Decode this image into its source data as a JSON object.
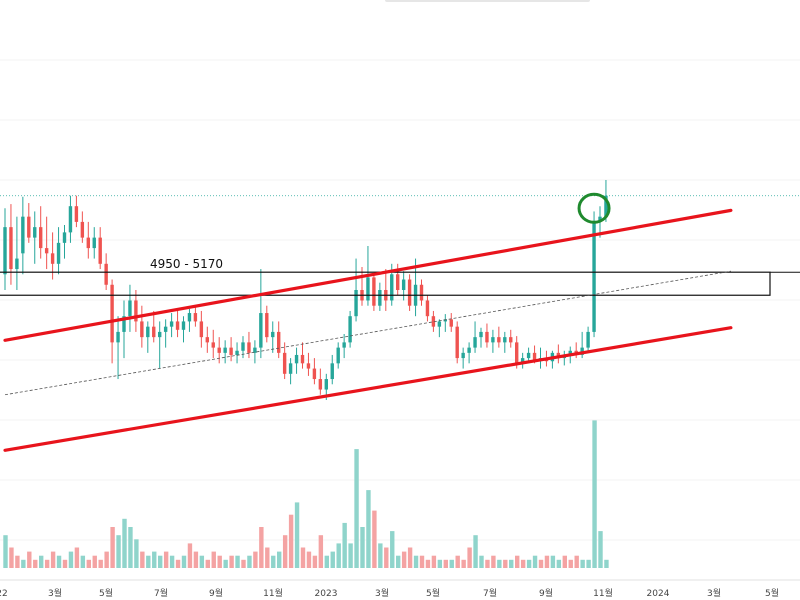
{
  "colors": {
    "up": "#26a69a",
    "down": "#ef5350",
    "up_volume": "#8fd4cb",
    "down_volume": "#f4a3a3",
    "channel": "#e8141c",
    "circle": "#1f8a2e",
    "zone_border": "#111111"
  },
  "chart_data": {
    "type": "candlestick",
    "title": "",
    "zone": {
      "label": "4950 - 5170",
      "low": 4950,
      "high": 5170
    },
    "x_ticks": [
      "22",
      "3월",
      "5월",
      "7월",
      "9월",
      "11월",
      "2023",
      "3월",
      "5월",
      "7월",
      "9월",
      "11월",
      "2024",
      "3월",
      "5월"
    ],
    "last_price_line": 5900,
    "ylim": [
      0,
      8000
    ],
    "channel_upper": {
      "start": [
        0,
        4520
      ],
      "end": [
        122,
        5760
      ]
    },
    "channel_lower": {
      "start": [
        0,
        3470
      ],
      "end": [
        122,
        4640
      ]
    },
    "channel_mid": {
      "start": [
        0,
        4000
      ],
      "end": [
        122,
        5180
      ]
    },
    "highlight_circle": {
      "x": 99,
      "y": 5780
    },
    "candles": [
      [
        5150,
        5780,
        5000,
        5600
      ],
      [
        5600,
        5820,
        5050,
        5200
      ],
      [
        5200,
        5700,
        5000,
        5300
      ],
      [
        5350,
        5890,
        5150,
        5700
      ],
      [
        5700,
        5830,
        5450,
        5500
      ],
      [
        5500,
        5750,
        5250,
        5600
      ],
      [
        5600,
        5800,
        5300,
        5400
      ],
      [
        5400,
        5700,
        5200,
        5350
      ],
      [
        5350,
        5550,
        5100,
        5250
      ],
      [
        5250,
        5600,
        5150,
        5450
      ],
      [
        5450,
        5620,
        5300,
        5550
      ],
      [
        5550,
        5900,
        5450,
        5800
      ],
      [
        5800,
        5900,
        5600,
        5650
      ],
      [
        5650,
        5750,
        5450,
        5500
      ],
      [
        5500,
        5650,
        5300,
        5400
      ],
      [
        5400,
        5600,
        5300,
        5500
      ],
      [
        5500,
        5600,
        5200,
        5250
      ],
      [
        5250,
        5350,
        5000,
        5050
      ],
      [
        5050,
        5100,
        4300,
        4500
      ],
      [
        4500,
        4750,
        4150,
        4600
      ],
      [
        4600,
        4900,
        4350,
        4750
      ],
      [
        4750,
        5050,
        4600,
        4900
      ],
      [
        4900,
        5000,
        4600,
        4700
      ],
      [
        4700,
        4850,
        4450,
        4550
      ],
      [
        4550,
        4700,
        4400,
        4650
      ],
      [
        4650,
        4800,
        4500,
        4550
      ],
      [
        4550,
        4700,
        4250,
        4600
      ],
      [
        4600,
        4720,
        4450,
        4650
      ],
      [
        4650,
        4780,
        4550,
        4700
      ],
      [
        4700,
        4800,
        4550,
        4620
      ],
      [
        4620,
        4750,
        4500,
        4700
      ],
      [
        4700,
        4820,
        4600,
        4780
      ],
      [
        4780,
        4850,
        4650,
        4700
      ],
      [
        4700,
        4800,
        4450,
        4550
      ],
      [
        4550,
        4650,
        4400,
        4500
      ],
      [
        4500,
        4620,
        4350,
        4450
      ],
      [
        4450,
        4550,
        4300,
        4400
      ],
      [
        4400,
        4520,
        4300,
        4450
      ],
      [
        4450,
        4550,
        4320,
        4380
      ],
      [
        4380,
        4500,
        4300,
        4420
      ],
      [
        4420,
        4560,
        4350,
        4500
      ],
      [
        4500,
        4600,
        4350,
        4400
      ],
      [
        4400,
        4520,
        4300,
        4450
      ],
      [
        4450,
        5200,
        4350,
        4780
      ],
      [
        4780,
        4850,
        4500,
        4550
      ],
      [
        4550,
        4700,
        4400,
        4600
      ],
      [
        4600,
        4700,
        4350,
        4400
      ],
      [
        4400,
        4500,
        4150,
        4200
      ],
      [
        4200,
        4350,
        4100,
        4300
      ],
      [
        4300,
        4450,
        4200,
        4380
      ],
      [
        4380,
        4500,
        4250,
        4300
      ],
      [
        4300,
        4400,
        4180,
        4250
      ],
      [
        4250,
        4350,
        4100,
        4150
      ],
      [
        4150,
        4250,
        4000,
        4050
      ],
      [
        4050,
        4200,
        3950,
        4150
      ],
      [
        4150,
        4380,
        4100,
        4300
      ],
      [
        4300,
        4500,
        4250,
        4450
      ],
      [
        4450,
        4580,
        4350,
        4500
      ],
      [
        4500,
        4800,
        4450,
        4750
      ],
      [
        4750,
        5300,
        4700,
        5000
      ],
      [
        5000,
        5220,
        4850,
        4900
      ],
      [
        4900,
        5420,
        4850,
        5120
      ],
      [
        5120,
        5150,
        4800,
        4850
      ],
      [
        4850,
        5070,
        4800,
        5000
      ],
      [
        5000,
        5200,
        4800,
        4900
      ],
      [
        4900,
        5250,
        4850,
        5150
      ],
      [
        5150,
        5250,
        4950,
        5000
      ],
      [
        5000,
        5180,
        4900,
        5100
      ],
      [
        5100,
        5150,
        4800,
        4850
      ],
      [
        4850,
        5300,
        4750,
        5050
      ],
      [
        5050,
        5100,
        4850,
        4900
      ],
      [
        4900,
        4950,
        4700,
        4750
      ],
      [
        4750,
        4800,
        4600,
        4650
      ],
      [
        4650,
        4720,
        4550,
        4700
      ],
      [
        4700,
        4770,
        4600,
        4720
      ],
      [
        4720,
        4780,
        4600,
        4650
      ],
      [
        4650,
        4700,
        4300,
        4350
      ],
      [
        4350,
        4450,
        4250,
        4400
      ],
      [
        4400,
        4500,
        4300,
        4450
      ],
      [
        4450,
        4700,
        4400,
        4550
      ],
      [
        4550,
        4640,
        4450,
        4600
      ],
      [
        4600,
        4680,
        4450,
        4500
      ],
      [
        4500,
        4620,
        4400,
        4550
      ],
      [
        4550,
        4650,
        4450,
        4500
      ],
      [
        4500,
        4600,
        4400,
        4550
      ],
      [
        4550,
        4620,
        4450,
        4500
      ],
      [
        4500,
        4560,
        4250,
        4300
      ],
      [
        4300,
        4400,
        4250,
        4350
      ],
      [
        4350,
        4450,
        4300,
        4400
      ],
      [
        4400,
        4470,
        4300,
        4330
      ],
      [
        4330,
        4450,
        4250,
        4350
      ],
      [
        4350,
        4420,
        4270,
        4320
      ],
      [
        4320,
        4420,
        4250,
        4400
      ],
      [
        4400,
        4480,
        4300,
        4350
      ],
      [
        4350,
        4420,
        4280,
        4370
      ],
      [
        4370,
        4460,
        4300,
        4420
      ],
      [
        4420,
        4500,
        4350,
        4380
      ],
      [
        4380,
        4600,
        4350,
        4450
      ],
      [
        4450,
        4650,
        4400,
        4600
      ],
      [
        4600,
        5750,
        4550,
        5650
      ],
      [
        5650,
        5800,
        5500,
        5700
      ],
      [
        5700,
        6050,
        5650,
        5900
      ]
    ],
    "volumes": [
      [
        8,
        0
      ],
      [
        5,
        1
      ],
      [
        3,
        1
      ],
      [
        2,
        0
      ],
      [
        4,
        1
      ],
      [
        2,
        1
      ],
      [
        3,
        0
      ],
      [
        2,
        1
      ],
      [
        4,
        1
      ],
      [
        3,
        0
      ],
      [
        2,
        1
      ],
      [
        4,
        0
      ],
      [
        5,
        1
      ],
      [
        3,
        0
      ],
      [
        2,
        1
      ],
      [
        3,
        1
      ],
      [
        2,
        1
      ],
      [
        4,
        1
      ],
      [
        10,
        1
      ],
      [
        8,
        0
      ],
      [
        12,
        0
      ],
      [
        10,
        0
      ],
      [
        7,
        0
      ],
      [
        4,
        1
      ],
      [
        3,
        0
      ],
      [
        4,
        0
      ],
      [
        3,
        0
      ],
      [
        4,
        1
      ],
      [
        3,
        0
      ],
      [
        2,
        1
      ],
      [
        3,
        0
      ],
      [
        6,
        1
      ],
      [
        4,
        1
      ],
      [
        3,
        0
      ],
      [
        2,
        1
      ],
      [
        4,
        1
      ],
      [
        3,
        1
      ],
      [
        2,
        0
      ],
      [
        3,
        1
      ],
      [
        3,
        0
      ],
      [
        2,
        1
      ],
      [
        3,
        0
      ],
      [
        4,
        1
      ],
      [
        10,
        1
      ],
      [
        5,
        1
      ],
      [
        3,
        0
      ],
      [
        4,
        0
      ],
      [
        8,
        1
      ],
      [
        13,
        1
      ],
      [
        16,
        0
      ],
      [
        5,
        1
      ],
      [
        4,
        1
      ],
      [
        3,
        1
      ],
      [
        8,
        1
      ],
      [
        3,
        0
      ],
      [
        4,
        0
      ],
      [
        6,
        0
      ],
      [
        11,
        0
      ],
      [
        6,
        0
      ],
      [
        29,
        0
      ],
      [
        10,
        0
      ],
      [
        19,
        0
      ],
      [
        14,
        1
      ],
      [
        6,
        0
      ],
      [
        5,
        1
      ],
      [
        9,
        0
      ],
      [
        3,
        0
      ],
      [
        4,
        1
      ],
      [
        5,
        1
      ],
      [
        3,
        0
      ],
      [
        3,
        1
      ],
      [
        2,
        1
      ],
      [
        3,
        1
      ],
      [
        2,
        0
      ],
      [
        2,
        1
      ],
      [
        2,
        0
      ],
      [
        3,
        1
      ],
      [
        2,
        1
      ],
      [
        5,
        1
      ],
      [
        8,
        0
      ],
      [
        3,
        0
      ],
      [
        2,
        1
      ],
      [
        3,
        1
      ],
      [
        2,
        0
      ],
      [
        2,
        1
      ],
      [
        2,
        0
      ],
      [
        3,
        1
      ],
      [
        2,
        1
      ],
      [
        2,
        0
      ],
      [
        3,
        0
      ],
      [
        2,
        1
      ],
      [
        3,
        1
      ],
      [
        3,
        0
      ],
      [
        2,
        0
      ],
      [
        3,
        1
      ],
      [
        2,
        1
      ],
      [
        3,
        1
      ],
      [
        2,
        0
      ],
      [
        2,
        0
      ],
      [
        36,
        0
      ],
      [
        9,
        0
      ],
      [
        2,
        0
      ]
    ]
  }
}
